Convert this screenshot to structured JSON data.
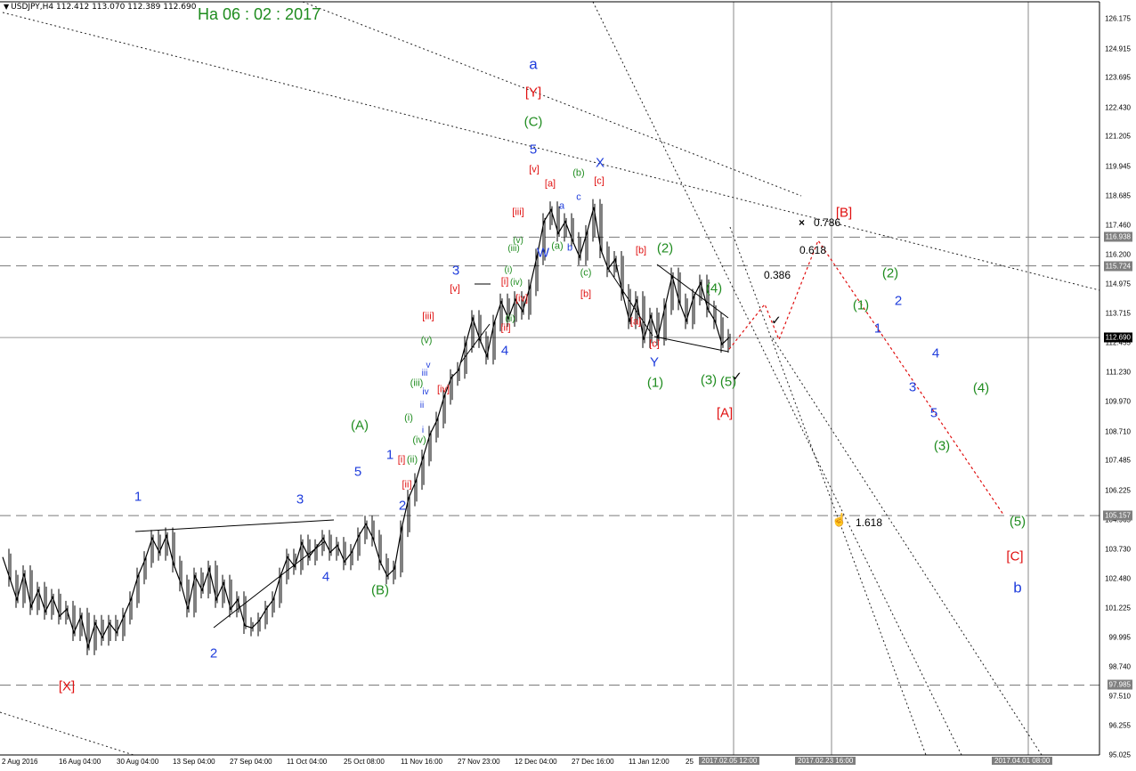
{
  "header": {
    "symbol": "USDJPY,H4",
    "ohlc": "112.412 113.070 112.389 112.690"
  },
  "date_title": "На 06 : 02 : 2017",
  "chart_data": {
    "type": "line",
    "title": "",
    "symbol": "USDJPY",
    "timeframe": "H4",
    "y_range": [
      95.025,
      126.9
    ],
    "y_ticks": [
      126.175,
      124.915,
      123.695,
      122.43,
      121.205,
      119.945,
      118.685,
      117.46,
      116.2,
      114.975,
      113.715,
      112.455,
      111.23,
      109.97,
      108.71,
      107.485,
      106.225,
      104.965,
      103.73,
      102.48,
      101.225,
      99.995,
      98.74,
      97.51,
      96.255,
      95.025
    ],
    "last_price": "112.690",
    "level_badges": [
      "116.938",
      "115.724",
      "105.157",
      "97.985"
    ],
    "x_ticks": [
      "2 Aug 2016",
      "16 Aug 04:00",
      "30 Aug 04:00",
      "13 Sep 04:00",
      "27 Sep 04:00",
      "11 Oct 04:00",
      "25 Oct 08:00",
      "11 Nov 16:00",
      "27 Nov 23:00",
      "12 Dec 04:00",
      "27 Dec 16:00",
      "11 Jan 12:00",
      "25"
    ],
    "x_badges": [
      "2017.02.05 12:00",
      "2017.02.23 16:00",
      "2017.04.01 08:00"
    ],
    "horizontal_levels": [
      116.938,
      115.724,
      112.69,
      105.157,
      97.985
    ],
    "fib_labels": [
      "0.786",
      "0.618",
      "0.386",
      "1.618"
    ],
    "price_path": [
      [
        0,
        103.4
      ],
      [
        2,
        102.5
      ],
      [
        4,
        101.6
      ],
      [
        6,
        102.7
      ],
      [
        8,
        101.3
      ],
      [
        10,
        102.0
      ],
      [
        12,
        101.1
      ],
      [
        14,
        101.7
      ],
      [
        16,
        100.9
      ],
      [
        18,
        101.2
      ],
      [
        20,
        100.2
      ],
      [
        22,
        100.9
      ],
      [
        24,
        99.6
      ],
      [
        26,
        100.6
      ],
      [
        28,
        100.0
      ],
      [
        30,
        100.6
      ],
      [
        32,
        100.2
      ],
      [
        34,
        100.9
      ],
      [
        36,
        101.6
      ],
      [
        38,
        102.6
      ],
      [
        40,
        103.3
      ],
      [
        42,
        104.2
      ],
      [
        44,
        103.6
      ],
      [
        46,
        104.3
      ],
      [
        48,
        103.1
      ],
      [
        50,
        102.3
      ],
      [
        52,
        101.2
      ],
      [
        54,
        102.6
      ],
      [
        56,
        102.0
      ],
      [
        58,
        102.9
      ],
      [
        60,
        101.6
      ],
      [
        62,
        102.3
      ],
      [
        64,
        101.2
      ],
      [
        66,
        101.6
      ],
      [
        68,
        100.5
      ],
      [
        70,
        100.4
      ],
      [
        72,
        100.7
      ],
      [
        74,
        101.2
      ],
      [
        76,
        101.6
      ],
      [
        78,
        102.6
      ],
      [
        80,
        103.4
      ],
      [
        82,
        103.0
      ],
      [
        84,
        104.0
      ],
      [
        86,
        103.4
      ],
      [
        88,
        103.8
      ],
      [
        90,
        104.2
      ],
      [
        92,
        103.6
      ],
      [
        94,
        103.9
      ],
      [
        96,
        103.2
      ],
      [
        98,
        103.6
      ],
      [
        100,
        104.3
      ],
      [
        102,
        104.8
      ],
      [
        104,
        104.2
      ],
      [
        106,
        103.2
      ],
      [
        108,
        102.6
      ],
      [
        110,
        102.9
      ],
      [
        112,
        104.6
      ],
      [
        114,
        105.9
      ],
      [
        116,
        106.6
      ],
      [
        118,
        107.6
      ],
      [
        120,
        108.6
      ],
      [
        122,
        109.2
      ],
      [
        124,
        110.2
      ],
      [
        126,
        111.0
      ],
      [
        128,
        111.3
      ],
      [
        130,
        112.4
      ],
      [
        132,
        113.5
      ],
      [
        134,
        112.6
      ],
      [
        136,
        111.9
      ],
      [
        138,
        113.3
      ],
      [
        140,
        114.2
      ],
      [
        142,
        113.5
      ],
      [
        144,
        114.3
      ],
      [
        146,
        113.8
      ],
      [
        148,
        114.8
      ],
      [
        150,
        116.1
      ],
      [
        152,
        117.6
      ],
      [
        154,
        118.1
      ],
      [
        156,
        117.1
      ],
      [
        158,
        117.6
      ],
      [
        160,
        116.8
      ],
      [
        162,
        116.1
      ],
      [
        164,
        117.1
      ],
      [
        166,
        118.2
      ],
      [
        168,
        116.4
      ],
      [
        170,
        115.6
      ],
      [
        172,
        116.0
      ],
      [
        174,
        114.6
      ],
      [
        176,
        113.4
      ],
      [
        178,
        114.3
      ],
      [
        180,
        112.6
      ],
      [
        182,
        113.6
      ],
      [
        184,
        112.7
      ],
      [
        186,
        114.0
      ],
      [
        188,
        115.3
      ],
      [
        190,
        114.2
      ],
      [
        192,
        113.4
      ],
      [
        194,
        114.4
      ],
      [
        196,
        115.0
      ],
      [
        198,
        113.9
      ],
      [
        200,
        113.4
      ],
      [
        202,
        112.4
      ],
      [
        204,
        112.7
      ]
    ],
    "forecast_path": [
      [
        204,
        112.2
      ],
      [
        214,
        114.1
      ],
      [
        218,
        112.6
      ],
      [
        229,
        116.8
      ],
      [
        281,
        105.2
      ]
    ],
    "wave_labels": [
      {
        "t": "[X]",
        "c": "red"
      },
      {
        "t": "1",
        "c": "blue"
      },
      {
        "t": "2",
        "c": "blue"
      },
      {
        "t": "3",
        "c": "blue"
      },
      {
        "t": "4",
        "c": "blue"
      },
      {
        "t": "5",
        "c": "blue"
      },
      {
        "t": "(A)",
        "c": "green"
      },
      {
        "t": "(B)",
        "c": "green"
      },
      {
        "t": "1",
        "c": "blue"
      },
      {
        "t": "2",
        "c": "blue"
      },
      {
        "t": "3",
        "c": "blue"
      },
      {
        "t": "4",
        "c": "blue"
      },
      {
        "t": "5",
        "c": "blue"
      },
      {
        "t": "a",
        "c": "blue"
      },
      {
        "t": "[Y]",
        "c": "red"
      },
      {
        "t": "(C)",
        "c": "green"
      },
      {
        "t": "W",
        "c": "blue"
      },
      {
        "t": "X",
        "c": "blue"
      },
      {
        "t": "Y",
        "c": "blue"
      },
      {
        "t": "[A]",
        "c": "red"
      },
      {
        "t": "[B]",
        "c": "red"
      },
      {
        "t": "[C]",
        "c": "red"
      },
      {
        "t": "b",
        "c": "blue"
      }
    ]
  },
  "labels": [
    {
      "t": "a",
      "c": "blue",
      "x": 599,
      "y": 72,
      "s": 17
    },
    {
      "t": "[Y]",
      "c": "red",
      "x": 599,
      "y": 104,
      "s": 15
    },
    {
      "t": "(C)",
      "c": "green",
      "x": 599,
      "y": 137,
      "s": 15
    },
    {
      "t": "5",
      "c": "blue",
      "x": 599,
      "y": 168,
      "s": 15
    },
    {
      "t": "[v]",
      "c": "red",
      "x": 600,
      "y": 191,
      "s": 11
    },
    {
      "t": "[a]",
      "c": "red",
      "x": 618,
      "y": 207,
      "s": 11
    },
    {
      "t": "(b)",
      "c": "green",
      "x": 650,
      "y": 195,
      "s": 11
    },
    {
      "t": "X",
      "c": "blue",
      "x": 674,
      "y": 183,
      "s": 15
    },
    {
      "t": "[c]",
      "c": "red",
      "x": 673,
      "y": 204,
      "s": 11
    },
    {
      "t": "a",
      "c": "blue",
      "x": 631,
      "y": 232,
      "s": 11
    },
    {
      "t": "c",
      "c": "blue",
      "x": 650,
      "y": 222,
      "s": 11
    },
    {
      "t": "[iii]",
      "c": "red",
      "x": 582,
      "y": 239,
      "s": 11
    },
    {
      "t": "(a)",
      "c": "green",
      "x": 626,
      "y": 277,
      "s": 11
    },
    {
      "t": "b",
      "c": "blue",
      "x": 640,
      "y": 279,
      "s": 11
    },
    {
      "t": "W",
      "c": "blue",
      "x": 610,
      "y": 284,
      "s": 15
    },
    {
      "t": "(iii)",
      "c": "green",
      "x": 577,
      "y": 280,
      "s": 10
    },
    {
      "t": "(v)",
      "c": "green",
      "x": 582,
      "y": 271,
      "s": 10
    },
    {
      "t": "(i)",
      "c": "green",
      "x": 571,
      "y": 304,
      "s": 10
    },
    {
      "t": "[i]",
      "c": "red",
      "x": 567,
      "y": 317,
      "s": 11
    },
    {
      "t": "(iv)",
      "c": "green",
      "x": 580,
      "y": 318,
      "s": 10
    },
    {
      "t": "[iv]",
      "c": "red",
      "x": 586,
      "y": 336,
      "s": 11
    },
    {
      "t": "(ii)",
      "c": "green",
      "x": 573,
      "y": 359,
      "s": 10
    },
    {
      "t": "[ii]",
      "c": "red",
      "x": 568,
      "y": 369,
      "s": 11
    },
    {
      "t": "(c)",
      "c": "green",
      "x": 658,
      "y": 307,
      "s": 11
    },
    {
      "t": "[b]",
      "c": "red",
      "x": 658,
      "y": 331,
      "s": 11
    },
    {
      "t": "[b]",
      "c": "red",
      "x": 720,
      "y": 282,
      "s": 11
    },
    {
      "t": "(2)",
      "c": "green",
      "x": 747,
      "y": 279,
      "s": 15
    },
    {
      "t": "(4)",
      "c": "green",
      "x": 802,
      "y": 324,
      "s": 15
    },
    {
      "t": "[a]",
      "c": "red",
      "x": 714,
      "y": 362,
      "s": 11
    },
    {
      "t": "[c]",
      "c": "red",
      "x": 735,
      "y": 387,
      "s": 11
    },
    {
      "t": "Y",
      "c": "blue",
      "x": 735,
      "y": 407,
      "s": 15
    },
    {
      "t": "(1)",
      "c": "green",
      "x": 736,
      "y": 430,
      "s": 15
    },
    {
      "t": "(3)",
      "c": "green",
      "x": 796,
      "y": 427,
      "s": 15
    },
    {
      "t": "(5)",
      "c": "green",
      "x": 818,
      "y": 429,
      "s": 15
    },
    {
      "t": "[A]",
      "c": "red",
      "x": 814,
      "y": 464,
      "s": 15
    },
    {
      "t": "3",
      "c": "blue",
      "x": 512,
      "y": 304,
      "s": 15
    },
    {
      "t": "[v]",
      "c": "red",
      "x": 511,
      "y": 325,
      "s": 11
    },
    {
      "t": "[iii]",
      "c": "red",
      "x": 481,
      "y": 356,
      "s": 11
    },
    {
      "t": "(v)",
      "c": "green",
      "x": 479,
      "y": 383,
      "s": 11
    },
    {
      "t": "4",
      "c": "blue",
      "x": 567,
      "y": 394,
      "s": 15
    },
    {
      "t": "v",
      "c": "blue",
      "x": 481,
      "y": 411,
      "s": 10
    },
    {
      "t": "iii",
      "c": "blue",
      "x": 477,
      "y": 420,
      "s": 10
    },
    {
      "t": "(iii)",
      "c": "green",
      "x": 468,
      "y": 431,
      "s": 11
    },
    {
      "t": "[iv]",
      "c": "red",
      "x": 498,
      "y": 438,
      "s": 11
    },
    {
      "t": "iv",
      "c": "blue",
      "x": 478,
      "y": 441,
      "s": 10
    },
    {
      "t": "ii",
      "c": "blue",
      "x": 474,
      "y": 456,
      "s": 10
    },
    {
      "t": "(i)",
      "c": "green",
      "x": 459,
      "y": 470,
      "s": 11
    },
    {
      "t": "i",
      "c": "blue",
      "x": 475,
      "y": 484,
      "s": 10
    },
    {
      "t": "(iv)",
      "c": "green",
      "x": 471,
      "y": 495,
      "s": 11
    },
    {
      "t": "1",
      "c": "blue",
      "x": 438,
      "y": 511,
      "s": 15
    },
    {
      "t": "[i]",
      "c": "red",
      "x": 451,
      "y": 517,
      "s": 11
    },
    {
      "t": "(ii)",
      "c": "green",
      "x": 463,
      "y": 517,
      "s": 11
    },
    {
      "t": "[ii]",
      "c": "red",
      "x": 457,
      "y": 545,
      "s": 11
    },
    {
      "t": "2",
      "c": "blue",
      "x": 452,
      "y": 568,
      "s": 15
    },
    {
      "t": "(A)",
      "c": "green",
      "x": 404,
      "y": 478,
      "s": 15
    },
    {
      "t": "5",
      "c": "blue",
      "x": 402,
      "y": 530,
      "s": 15
    },
    {
      "t": "(B)",
      "c": "green",
      "x": 427,
      "y": 663,
      "s": 15
    },
    {
      "t": "1",
      "c": "blue",
      "x": 155,
      "y": 558,
      "s": 15
    },
    {
      "t": "3",
      "c": "blue",
      "x": 337,
      "y": 561,
      "s": 15
    },
    {
      "t": "4",
      "c": "blue",
      "x": 366,
      "y": 648,
      "s": 15
    },
    {
      "t": "2",
      "c": "blue",
      "x": 240,
      "y": 734,
      "s": 15
    },
    {
      "t": "[X]",
      "c": "red",
      "x": 75,
      "y": 771,
      "s": 15
    },
    {
      "t": "[B]",
      "c": "red",
      "x": 948,
      "y": 239,
      "s": 15
    },
    {
      "t": "(2)",
      "c": "green",
      "x": 1000,
      "y": 307,
      "s": 15
    },
    {
      "t": "2",
      "c": "blue",
      "x": 1009,
      "y": 338,
      "s": 15
    },
    {
      "t": "(1)",
      "c": "green",
      "x": 967,
      "y": 343,
      "s": 15
    },
    {
      "t": "1",
      "c": "blue",
      "x": 986,
      "y": 369,
      "s": 15
    },
    {
      "t": "4",
      "c": "blue",
      "x": 1051,
      "y": 397,
      "s": 15
    },
    {
      "t": "3",
      "c": "blue",
      "x": 1025,
      "y": 435,
      "s": 15
    },
    {
      "t": "(4)",
      "c": "green",
      "x": 1102,
      "y": 436,
      "s": 15
    },
    {
      "t": "5",
      "c": "blue",
      "x": 1049,
      "y": 464,
      "s": 15
    },
    {
      "t": "(3)",
      "c": "green",
      "x": 1058,
      "y": 501,
      "s": 15
    },
    {
      "t": "(5)",
      "c": "green",
      "x": 1143,
      "y": 586,
      "s": 15
    },
    {
      "t": "[C]",
      "c": "red",
      "x": 1140,
      "y": 625,
      "s": 15
    },
    {
      "t": "b",
      "c": "blue",
      "x": 1143,
      "y": 660,
      "s": 17
    }
  ],
  "markers": {
    "cross": "×",
    "check": "✓",
    "hand": "☝"
  }
}
